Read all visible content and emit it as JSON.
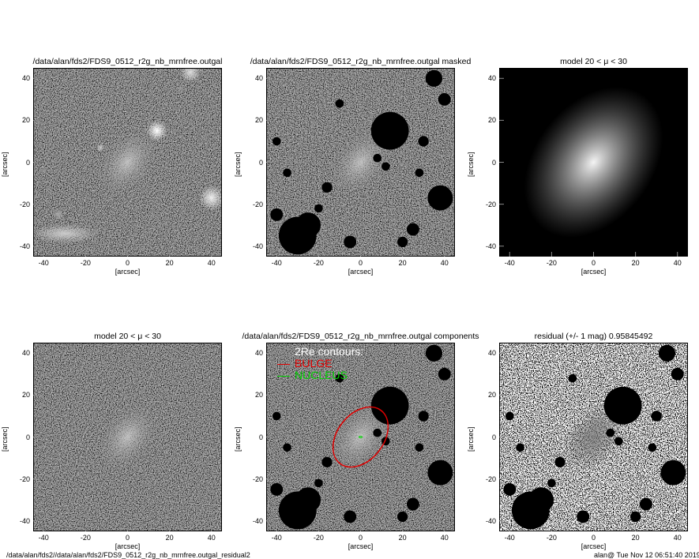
{
  "panels": [
    {
      "title": "/data/alan/fds2/FDS9_0512_r2g_nb_mrnfree.outgal",
      "type": "original"
    },
    {
      "title": "/data/alan/fds2/FDS9_0512_r2g_nb_mrnfree.outgal masked",
      "type": "masked"
    },
    {
      "title": "model 20 < μ < 30",
      "type": "model"
    },
    {
      "title": "model 20 < μ < 30",
      "type": "model-noise"
    },
    {
      "title": "/data/alan/fds2/FDS9_0512_r2g_nb_mrnfree.outgal components",
      "type": "components"
    },
    {
      "title": "residual  (+/- 1 mag)      0.95845492",
      "type": "residual"
    }
  ],
  "axes": {
    "x_ticks": [
      "-40",
      "-20",
      "0",
      "20",
      "40"
    ],
    "y_ticks": [
      "40",
      "20",
      "0",
      "-20",
      "-40"
    ],
    "x_label": "[arcsec]",
    "y_label": "[arcsec]",
    "range": [
      -45,
      45
    ]
  },
  "legend": {
    "heading": "2Re contours:",
    "items": [
      {
        "label": "BULGE",
        "color": "#e00000"
      },
      {
        "label": "NUCLEUS",
        "color": "#00d000"
      }
    ]
  },
  "footer": {
    "left": "/data/alan/fds2//data/alan/fds2/FDS9_0512_r2g_nb_mrnfree.outgal_residual2",
    "right": "alan@  Tue Nov 12 06:51:40 2019"
  }
}
